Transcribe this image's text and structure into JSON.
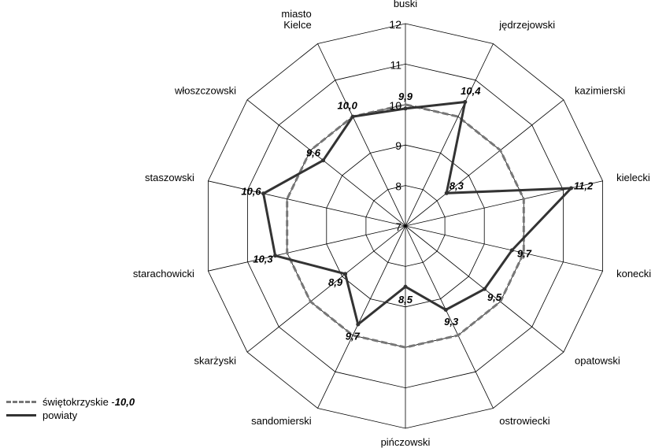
{
  "chart_data": {
    "type": "radar",
    "categories": [
      "buski",
      "jędrzejowski",
      "kazimierski",
      "kielecki",
      "konecki",
      "opatowski",
      "ostrowiecki",
      "pińczowski",
      "sandomierski",
      "skarżyski",
      "starachowicki",
      "staszowski",
      "włoszczowski",
      "miasto Kielce"
    ],
    "category_lines": [
      [
        "buski"
      ],
      [
        "jędrzejowski"
      ],
      [
        "kazimierski"
      ],
      [
        "kielecki"
      ],
      [
        "konecki"
      ],
      [
        "opatowski"
      ],
      [
        "ostrowiecki"
      ],
      [
        "pińczowski"
      ],
      [
        "sandomierski"
      ],
      [
        "skarżyski"
      ],
      [
        "starachowicki"
      ],
      [
        "staszowski"
      ],
      [
        "włoszczowski"
      ],
      [
        "miasto",
        "Kielce"
      ]
    ],
    "r_range": [
      7,
      12
    ],
    "r_ticks": [
      7,
      8,
      9,
      10,
      11,
      12
    ],
    "series": [
      {
        "name": "świętokrzyskie",
        "style": "dashed",
        "color": "#777777",
        "values": [
          10,
          10,
          10,
          10,
          10,
          10,
          10,
          10,
          10,
          10,
          10,
          10,
          10,
          10
        ]
      },
      {
        "name": "powiaty",
        "style": "solid",
        "color": "#333333",
        "values": [
          9.9,
          10.4,
          8.3,
          11.2,
          9.7,
          9.5,
          9.3,
          8.5,
          9.7,
          8.9,
          10.3,
          10.6,
          9.6,
          10.0
        ],
        "labels": [
          "9,9",
          "10,4",
          "8,3",
          "11,2",
          "9,7",
          "9,5",
          "9,3",
          "8,5",
          "9,7",
          "8,9",
          "10,3",
          "10,6",
          "9,6",
          "10,0"
        ]
      }
    ],
    "legend": {
      "position": "bottom-left",
      "entries": [
        {
          "text": "świętokrzyskie - ",
          "value": "10,0",
          "style": "dashed"
        },
        {
          "text": "powiaty",
          "value": "",
          "style": "solid"
        }
      ]
    }
  }
}
